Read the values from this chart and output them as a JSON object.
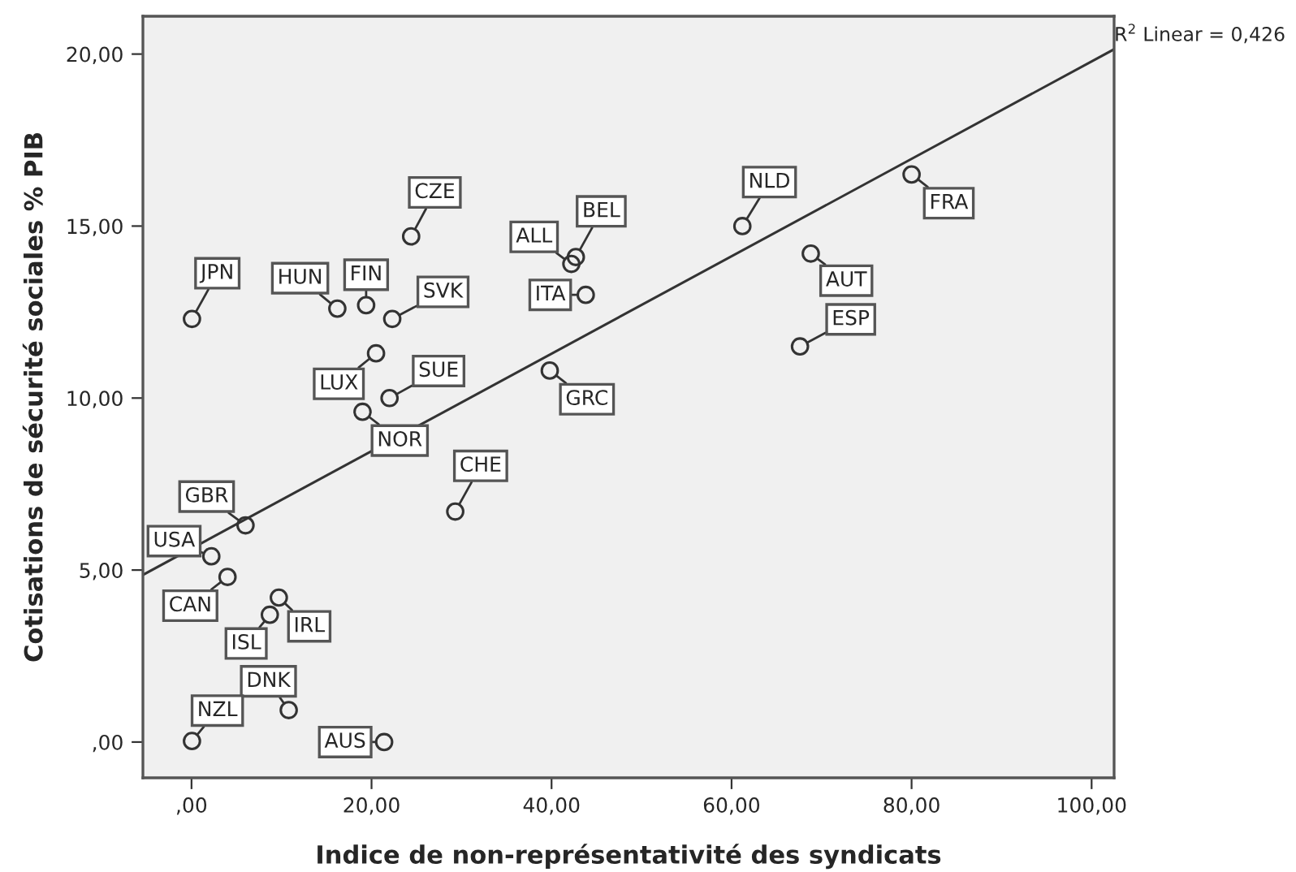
{
  "chart_data": {
    "type": "scatter",
    "xlabel": "Indice de non-représentativité des syndicats",
    "ylabel": "Cotisations de sécurité sociales % PIB",
    "xlim": [
      -5.4,
      102.5
    ],
    "ylim": [
      -1.04,
      21.1
    ],
    "xticks": [
      {
        "value": 0,
        "label": ",00"
      },
      {
        "value": 20,
        "label": "20,00"
      },
      {
        "value": 40,
        "label": "40,00"
      },
      {
        "value": 60,
        "label": "60,00"
      },
      {
        "value": 80,
        "label": "80,00"
      },
      {
        "value": 100,
        "label": "100,00"
      }
    ],
    "yticks": [
      {
        "value": 0,
        "label": ",00"
      },
      {
        "value": 5,
        "label": "5,00"
      },
      {
        "value": 10,
        "label": "10,00"
      },
      {
        "value": 15,
        "label": "15,00"
      },
      {
        "value": 20,
        "label": "20,00"
      }
    ],
    "grid": false,
    "series": [
      {
        "marker": "circle",
        "color": "#333333",
        "x": [
          0.05,
          16.2,
          19.4,
          22.3,
          24.4,
          42.2,
          42.7,
          43.8,
          20.5,
          22.0,
          19.0,
          39.8,
          29.3,
          6.0,
          2.2,
          4.0,
          8.7,
          9.7,
          10.8,
          0.05,
          21.4,
          61.2,
          80.0,
          68.8,
          67.6
        ],
        "values": [
          12.3,
          12.6,
          12.7,
          12.3,
          14.7,
          13.9,
          14.1,
          13.0,
          11.3,
          10.0,
          9.6,
          10.8,
          6.7,
          6.3,
          5.4,
          4.8,
          3.7,
          4.2,
          0.93,
          0.03,
          0.0,
          15.0,
          16.5,
          14.2,
          11.5
        ]
      },
      {
        "type": "line",
        "marker": "none",
        "color": "#333333",
        "x": [
          -5.4,
          102.5
        ],
        "values": [
          4.86,
          20.14
        ]
      }
    ],
    "annotations": [
      {
        "text": "JPN",
        "x": 0.05,
        "y": 12.3
      },
      {
        "text": "HUN",
        "x": 16.2,
        "y": 12.6
      },
      {
        "text": "FIN",
        "x": 19.4,
        "y": 12.7
      },
      {
        "text": "SVK",
        "x": 22.3,
        "y": 12.3
      },
      {
        "text": "CZE",
        "x": 24.4,
        "y": 14.7
      },
      {
        "text": "ALL",
        "x": 42.2,
        "y": 13.9
      },
      {
        "text": "BEL",
        "x": 42.7,
        "y": 14.1
      },
      {
        "text": "ITA",
        "x": 43.8,
        "y": 13.0
      },
      {
        "text": "LUX",
        "x": 20.5,
        "y": 11.3
      },
      {
        "text": "SUE",
        "x": 22.0,
        "y": 10.0
      },
      {
        "text": "NOR",
        "x": 19.0,
        "y": 9.6
      },
      {
        "text": "GRC",
        "x": 39.8,
        "y": 10.8
      },
      {
        "text": "CHE",
        "x": 29.3,
        "y": 6.7
      },
      {
        "text": "GBR",
        "x": 6.0,
        "y": 6.3
      },
      {
        "text": "USA",
        "x": 2.2,
        "y": 5.4
      },
      {
        "text": "CAN",
        "x": 4.0,
        "y": 4.8
      },
      {
        "text": "ISL",
        "x": 8.7,
        "y": 3.7
      },
      {
        "text": "IRL",
        "x": 9.7,
        "y": 4.2
      },
      {
        "text": "DNK",
        "x": 10.8,
        "y": 0.93
      },
      {
        "text": "NZL",
        "x": 0.05,
        "y": 0.03
      },
      {
        "text": "AUS",
        "x": 21.4,
        "y": 0.0
      },
      {
        "text": "NLD",
        "x": 61.2,
        "y": 15.0
      },
      {
        "text": "FRA",
        "x": 80.0,
        "y": 16.5
      },
      {
        "text": "AUT",
        "x": 68.8,
        "y": 14.2
      },
      {
        "text": "ESP",
        "x": 67.6,
        "y": 11.5
      },
      "R$^{2}$ Linear = 0,426"
    ]
  }
}
